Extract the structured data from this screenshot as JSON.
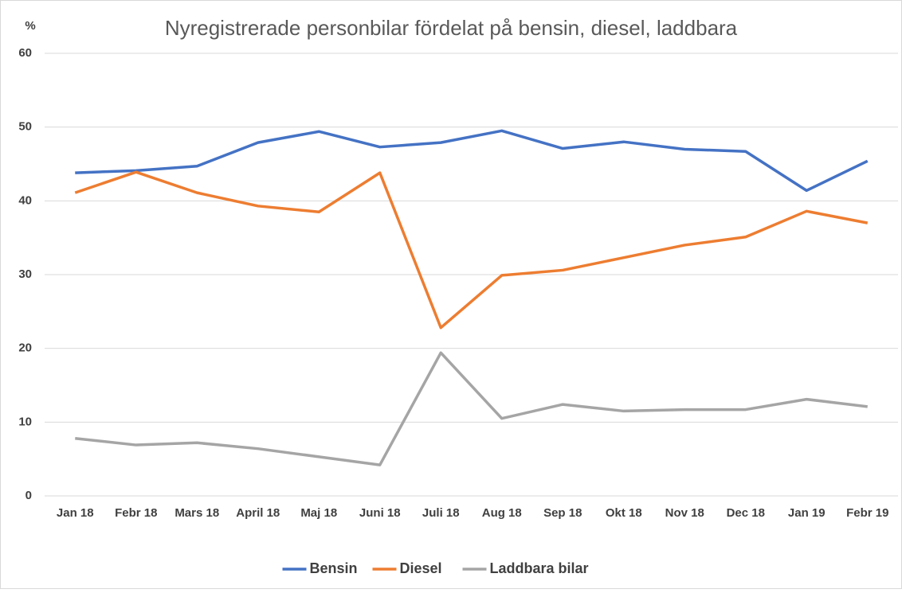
{
  "chart_data": {
    "type": "line",
    "title": "Nyregistrerade personbilar fördelat på bensin, diesel, laddbara",
    "y_label": "%",
    "categories": [
      "Jan 18",
      "Febr 18",
      "Mars 18",
      "April 18",
      "Maj 18",
      "Juni 18",
      "Juli 18",
      "Aug 18",
      "Sep 18",
      "Okt 18",
      "Nov 18",
      "Dec 18",
      "Jan 19",
      "Febr 19"
    ],
    "series": [
      {
        "name": "Bensin",
        "color": "#4472c4",
        "values": [
          43.8,
          44.1,
          44.7,
          47.9,
          49.4,
          47.3,
          47.9,
          49.5,
          47.1,
          48.0,
          47.0,
          46.7,
          41.4,
          45.4
        ]
      },
      {
        "name": "Diesel",
        "color": "#ed7d31",
        "values": [
          41.1,
          43.9,
          41.1,
          39.3,
          38.5,
          43.8,
          22.8,
          29.9,
          30.6,
          32.3,
          34.0,
          35.1,
          38.6,
          37.0
        ]
      },
      {
        "name": "Laddbara bilar",
        "color": "#a5a5a5",
        "values": [
          7.8,
          6.9,
          7.2,
          6.4,
          5.3,
          4.2,
          19.4,
          10.5,
          12.4,
          11.5,
          11.7,
          11.7,
          13.1,
          12.1
        ]
      }
    ],
    "ylim": [
      0,
      60
    ],
    "yticks": [
      0,
      10,
      20,
      30,
      40,
      50,
      60
    ],
    "grid": true,
    "legend": "bottom"
  }
}
